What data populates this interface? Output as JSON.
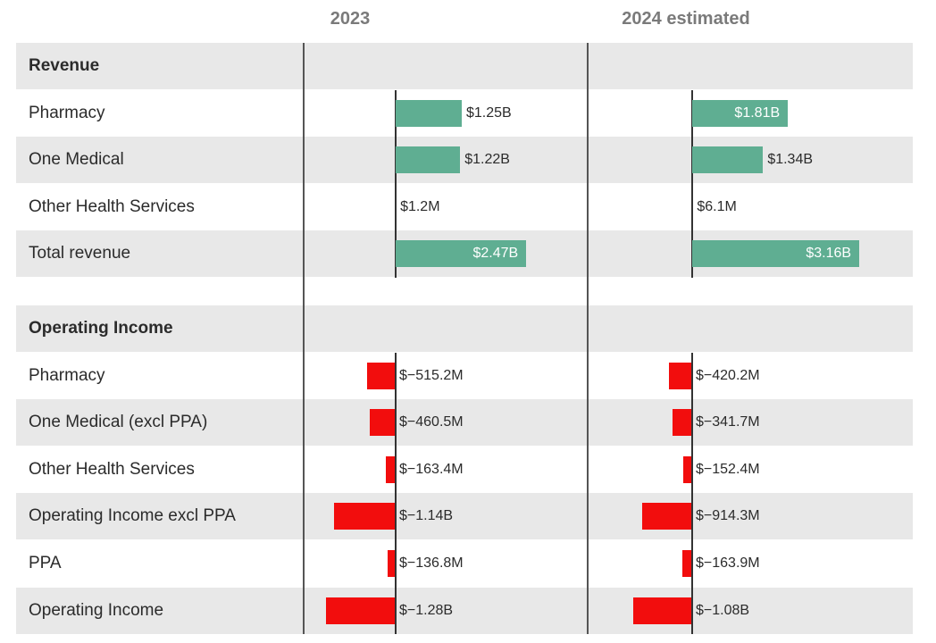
{
  "columns": [
    "2023",
    "2024 estimated"
  ],
  "colors": {
    "positive": "#5fae92",
    "negative": "#f20d0d",
    "band": "#e8e8e8"
  },
  "sections": [
    {
      "title": "Revenue"
    },
    {
      "title": "Operating Income"
    }
  ],
  "chart_data": {
    "type": "bar",
    "orientation": "horizontal",
    "categories": [
      "Pharmacy",
      "One Medical",
      "Other Health Services",
      "Total revenue",
      "Pharmacy",
      "One Medical (excl PPA)",
      "Other Health Services",
      "Operating Income excl PPA",
      "PPA",
      "Operating Income"
    ],
    "groups": [
      "Revenue",
      "Revenue",
      "Revenue",
      "Revenue",
      "Operating Income",
      "Operating Income",
      "Operating Income",
      "Operating Income",
      "Operating Income",
      "Operating Income"
    ],
    "series": [
      {
        "name": "2023",
        "values": [
          1250,
          1220,
          1.2,
          2470,
          -515.2,
          -460.5,
          -163.4,
          -1140,
          -136.8,
          -1280
        ],
        "labels": [
          "$1.25B",
          "$1.22B",
          "$1.2M",
          "$2.47B",
          "$−515.2M",
          "$−460.5M",
          "$−163.4M",
          "$−1.14B",
          "$−136.8M",
          "$−1.28B"
        ]
      },
      {
        "name": "2024 estimated",
        "values": [
          1810,
          1340,
          6.1,
          3160,
          -420.2,
          -341.7,
          -152.4,
          -914.3,
          -163.9,
          -1080
        ],
        "labels": [
          "$1.81B",
          "$1.34B",
          "$6.1M",
          "$3.16B",
          "$−420.2M",
          "$−341.7M",
          "$−152.4M",
          "$−914.3M",
          "$−163.9M",
          "$−1.08B"
        ]
      }
    ],
    "unit": "millions USD"
  }
}
